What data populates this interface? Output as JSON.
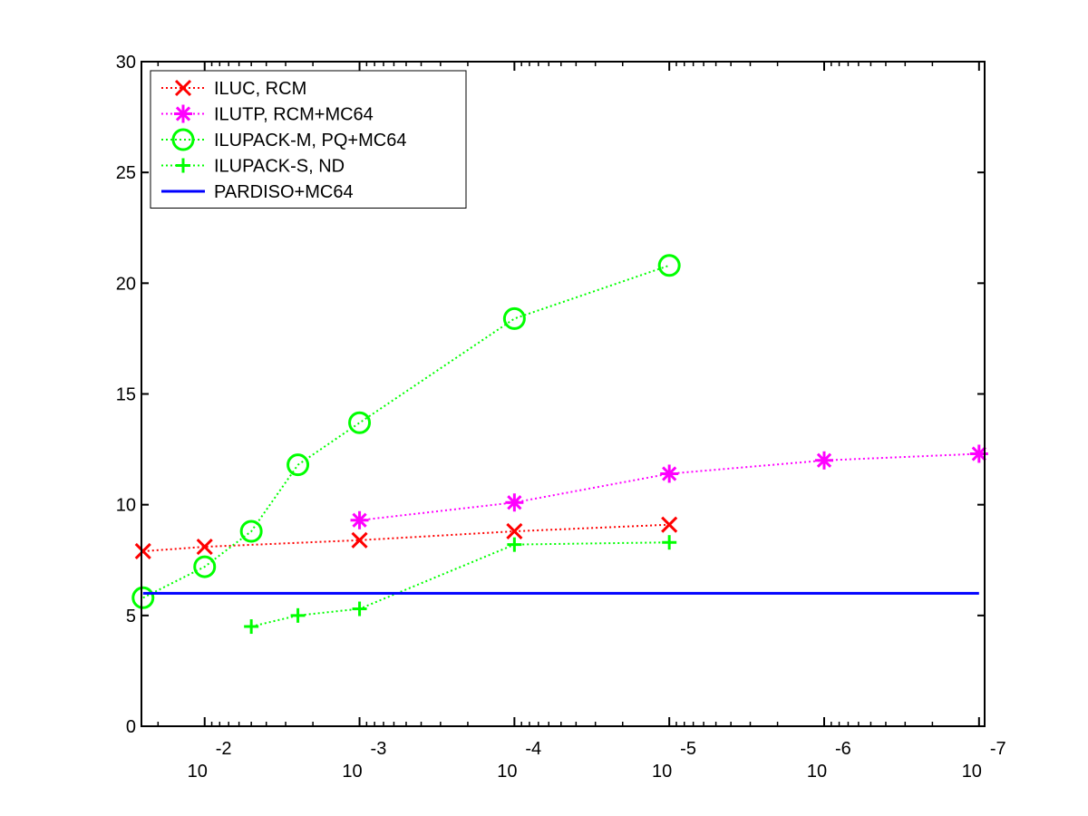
{
  "chart_data": {
    "type": "line",
    "title": "",
    "xlabel": "",
    "ylabel": "",
    "x_scale": "log",
    "x_reversed": true,
    "x_tick_values": [
      0.01,
      0.001,
      0.0001,
      1e-05,
      1e-06,
      1e-07
    ],
    "x_tick_labels": [
      {
        "base": "10",
        "exp": "-2"
      },
      {
        "base": "10",
        "exp": "-3"
      },
      {
        "base": "10",
        "exp": "-4"
      },
      {
        "base": "10",
        "exp": "-5"
      },
      {
        "base": "10",
        "exp": "-6"
      },
      {
        "base": "10",
        "exp": "-7"
      }
    ],
    "xlim": [
      0.0256,
      9.2e-08
    ],
    "ylim": [
      0,
      30
    ],
    "y_tick_labels": [
      "0",
      "5",
      "10",
      "15",
      "20",
      "25",
      "30"
    ],
    "grid": false,
    "legend_position": "top-left",
    "series": [
      {
        "name": "ILUC, RCM",
        "color": "#ff0000",
        "marker": "x",
        "line": "dotted",
        "x": [
          0.025,
          0.01,
          0.001,
          0.0001,
          1e-05
        ],
        "y": [
          7.9,
          8.1,
          8.4,
          8.8,
          9.1
        ]
      },
      {
        "name": "ILUTP, RCM+MC64",
        "color": "#ff00ff",
        "marker": "asterisk",
        "line": "dotted",
        "x": [
          0.001,
          0.0001,
          1e-05,
          1e-06,
          1e-07
        ],
        "y": [
          9.3,
          10.1,
          11.4,
          12.0,
          12.3
        ]
      },
      {
        "name": "ILUPACK-M, PQ+MC64",
        "color": "#00ff00",
        "marker": "circle",
        "line": "dotted",
        "x": [
          0.025,
          0.01,
          0.005,
          0.0025,
          0.001,
          0.0001,
          1e-05
        ],
        "y": [
          5.8,
          7.2,
          8.8,
          11.8,
          13.7,
          18.4,
          20.8
        ]
      },
      {
        "name": "ILUPACK-S, ND",
        "color": "#00ff00",
        "marker": "plus",
        "line": "dotted",
        "x": [
          0.005,
          0.0025,
          0.001,
          0.0001,
          1e-05
        ],
        "y": [
          4.5,
          5.0,
          5.3,
          8.2,
          8.3
        ]
      },
      {
        "name": "PARDISO+MC64",
        "color": "#0000ff",
        "marker": "none",
        "line": "solid",
        "x": [
          0.025,
          1e-07
        ],
        "y": [
          6.0,
          6.0
        ]
      }
    ]
  }
}
